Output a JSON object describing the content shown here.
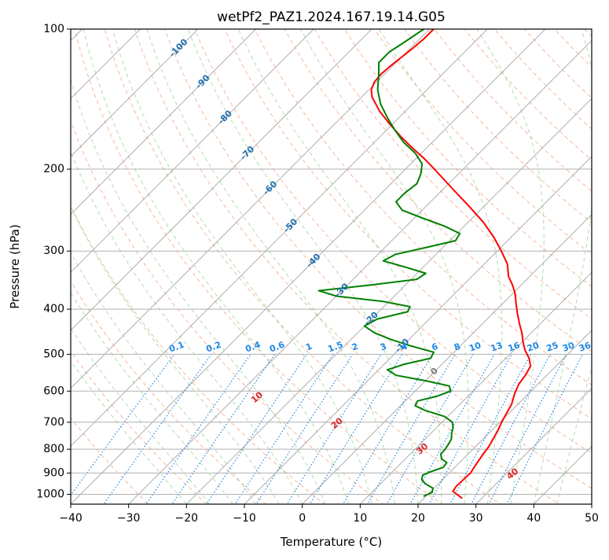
{
  "chart_data": {
    "type": "line",
    "subtype": "skew-t log-p diagram",
    "title": "wetPf2_PAZ1.2024.167.19.14.G05",
    "xlabel": "Temperature (°C)",
    "ylabel": "Pressure (hPa)",
    "xlim": [
      -40,
      50
    ],
    "ylim": [
      1050,
      100
    ],
    "y_scale": "log",
    "x_ticks": [
      -40,
      -30,
      -20,
      -10,
      0,
      10,
      20,
      30,
      40,
      50
    ],
    "y_ticks": [
      100,
      200,
      300,
      400,
      500,
      600,
      700,
      800,
      900,
      1000
    ],
    "grid": true,
    "colors": {
      "temperature": "#ff0000",
      "dewpoint": "#008000",
      "isotherm": "#9a9a9a",
      "dry_adiabat": "#f4a582",
      "moist_adiabat": "#8fcf8f",
      "mixing_ratio": "#1e88e5",
      "isotherm_label": "#1f6fae",
      "dry_adiabat_label": "#d62728",
      "mixing_ratio_label": "#1e88e5"
    },
    "series": [
      {
        "name": "Temperature",
        "points": [
          {
            "p": 1020,
            "t": 26.6
          },
          {
            "p": 1000,
            "t": 25.0
          },
          {
            "p": 985,
            "t": 23.8
          },
          {
            "p": 960,
            "t": 23.5
          },
          {
            "p": 930,
            "t": 23.6
          },
          {
            "p": 900,
            "t": 23.7
          },
          {
            "p": 880,
            "t": 23.4
          },
          {
            "p": 850,
            "t": 23.0
          },
          {
            "p": 820,
            "t": 22.6
          },
          {
            "p": 790,
            "t": 22.3
          },
          {
            "p": 760,
            "t": 21.7
          },
          {
            "p": 730,
            "t": 21.1
          },
          {
            "p": 700,
            "t": 20.3
          },
          {
            "p": 670,
            "t": 19.6
          },
          {
            "p": 640,
            "t": 18.9
          },
          {
            "p": 610,
            "t": 17.7
          },
          {
            "p": 580,
            "t": 16.7
          },
          {
            "p": 555,
            "t": 16.3
          },
          {
            "p": 530,
            "t": 15.6
          },
          {
            "p": 510,
            "t": 14.0
          },
          {
            "p": 490,
            "t": 11.9
          },
          {
            "p": 470,
            "t": 10.1
          },
          {
            "p": 450,
            "t": 8.4
          },
          {
            "p": 430,
            "t": 6.4
          },
          {
            "p": 410,
            "t": 4.4
          },
          {
            "p": 390,
            "t": 2.4
          },
          {
            "p": 370,
            "t": 0.4
          },
          {
            "p": 355,
            "t": -1.5
          },
          {
            "p": 340,
            "t": -3.7
          },
          {
            "p": 320,
            "t": -6.0
          },
          {
            "p": 300,
            "t": -9.3
          },
          {
            "p": 280,
            "t": -13.0
          },
          {
            "p": 260,
            "t": -17.4
          },
          {
            "p": 240,
            "t": -22.7
          },
          {
            "p": 220,
            "t": -28.6
          },
          {
            "p": 200,
            "t": -35.0
          },
          {
            "p": 190,
            "t": -38.5
          },
          {
            "p": 180,
            "t": -42.5
          },
          {
            "p": 170,
            "t": -46.5
          },
          {
            "p": 160,
            "t": -50.5
          },
          {
            "p": 150,
            "t": -54.5
          },
          {
            "p": 140,
            "t": -58.2
          },
          {
            "p": 135,
            "t": -59.6
          },
          {
            "p": 130,
            "t": -60.4
          },
          {
            "p": 125,
            "t": -60.6
          },
          {
            "p": 120,
            "t": -60.4
          },
          {
            "p": 115,
            "t": -60.0
          },
          {
            "p": 110,
            "t": -59.6
          },
          {
            "p": 105,
            "t": -59.3
          },
          {
            "p": 100,
            "t": -59.3
          }
        ]
      },
      {
        "name": "Dewpoint",
        "points": [
          {
            "p": 1010,
            "t": 19.6
          },
          {
            "p": 990,
            "t": 20.4
          },
          {
            "p": 970,
            "t": 19.8
          },
          {
            "p": 950,
            "t": 17.8
          },
          {
            "p": 930,
            "t": 16.4
          },
          {
            "p": 910,
            "t": 15.8
          },
          {
            "p": 895,
            "t": 16.5
          },
          {
            "p": 875,
            "t": 18.0
          },
          {
            "p": 855,
            "t": 17.8
          },
          {
            "p": 840,
            "t": 16.3
          },
          {
            "p": 820,
            "t": 15.3
          },
          {
            "p": 800,
            "t": 15.2
          },
          {
            "p": 780,
            "t": 14.9
          },
          {
            "p": 760,
            "t": 14.5
          },
          {
            "p": 740,
            "t": 13.6
          },
          {
            "p": 720,
            "t": 12.9
          },
          {
            "p": 700,
            "t": 11.8
          },
          {
            "p": 680,
            "t": 9.4
          },
          {
            "p": 660,
            "t": 5.0
          },
          {
            "p": 645,
            "t": 2.5
          },
          {
            "p": 630,
            "t": 2.1
          },
          {
            "p": 615,
            "t": 4.7
          },
          {
            "p": 600,
            "t": 6.1
          },
          {
            "p": 585,
            "t": 5.0
          },
          {
            "p": 570,
            "t": 0.0
          },
          {
            "p": 555,
            "t": -6.0
          },
          {
            "p": 540,
            "t": -8.5
          },
          {
            "p": 525,
            "t": -6.5
          },
          {
            "p": 510,
            "t": -3.0
          },
          {
            "p": 495,
            "t": -3.5
          },
          {
            "p": 480,
            "t": -8.5
          },
          {
            "p": 465,
            "t": -13.0
          },
          {
            "p": 450,
            "t": -17.0
          },
          {
            "p": 435,
            "t": -20.0
          },
          {
            "p": 420,
            "t": -19.0
          },
          {
            "p": 405,
            "t": -15.0
          },
          {
            "p": 395,
            "t": -15.5
          },
          {
            "p": 385,
            "t": -21.0
          },
          {
            "p": 375,
            "t": -30.0
          },
          {
            "p": 365,
            "t": -34.0
          },
          {
            "p": 355,
            "t": -26.0
          },
          {
            "p": 345,
            "t": -19.0
          },
          {
            "p": 335,
            "t": -18.5
          },
          {
            "p": 325,
            "t": -23.0
          },
          {
            "p": 315,
            "t": -28.0
          },
          {
            "p": 305,
            "t": -27.0
          },
          {
            "p": 295,
            "t": -23.0
          },
          {
            "p": 285,
            "t": -19.0
          },
          {
            "p": 275,
            "t": -19.5
          },
          {
            "p": 265,
            "t": -23.5
          },
          {
            "p": 255,
            "t": -28.5
          },
          {
            "p": 245,
            "t": -33.5
          },
          {
            "p": 235,
            "t": -36.0
          },
          {
            "p": 225,
            "t": -36.0
          },
          {
            "p": 215,
            "t": -35.5
          },
          {
            "p": 205,
            "t": -36.5
          },
          {
            "p": 195,
            "t": -38.0
          },
          {
            "p": 185,
            "t": -41.0
          },
          {
            "p": 175,
            "t": -45.0
          },
          {
            "p": 165,
            "t": -48.5
          },
          {
            "p": 155,
            "t": -52.0
          },
          {
            "p": 145,
            "t": -55.5
          },
          {
            "p": 135,
            "t": -58.5
          },
          {
            "p": 125,
            "t": -61.0
          },
          {
            "p": 118,
            "t": -63.0
          },
          {
            "p": 112,
            "t": -63.0
          },
          {
            "p": 106,
            "t": -62.0
          },
          {
            "p": 100,
            "t": -61.0
          }
        ]
      }
    ],
    "isotherm_labels": [
      {
        "text": "-100",
        "t": -100,
        "p": 110
      },
      {
        "text": "-90",
        "t": -90,
        "p": 130
      },
      {
        "text": "-80",
        "t": -80,
        "p": 155
      },
      {
        "text": "-70",
        "t": -70,
        "p": 185
      },
      {
        "text": "-60",
        "t": -60,
        "p": 220
      },
      {
        "text": "-50",
        "t": -50,
        "p": 265
      },
      {
        "text": "-40",
        "t": -40,
        "p": 315
      },
      {
        "text": "-30",
        "t": -30,
        "p": 365
      },
      {
        "text": "-20",
        "t": -20,
        "p": 420
      },
      {
        "text": "-10",
        "t": -10,
        "p": 480
      },
      {
        "text": "0",
        "t": 0,
        "p": 545
      }
    ],
    "dry_adiabat_labels": [
      {
        "text": "10",
        "t": 10,
        "p": 620
      },
      {
        "text": "20",
        "t": 20,
        "p": 705
      },
      {
        "text": "30",
        "t": 30,
        "p": 800
      },
      {
        "text": "40",
        "t": 40,
        "p": 905
      }
    ],
    "mixing_ratio_labels": [
      "0.1",
      "0.2",
      "0.4",
      "0.6",
      "1",
      "1.5",
      "2",
      "3",
      "4",
      "6",
      "8",
      "10",
      "13",
      "16",
      "20",
      "25",
      "30",
      "36"
    ],
    "mixing_ratio_values": [
      0.1,
      0.2,
      0.4,
      0.6,
      1,
      1.5,
      2,
      3,
      4,
      6,
      8,
      10,
      13,
      16,
      20,
      25,
      30,
      36
    ]
  }
}
